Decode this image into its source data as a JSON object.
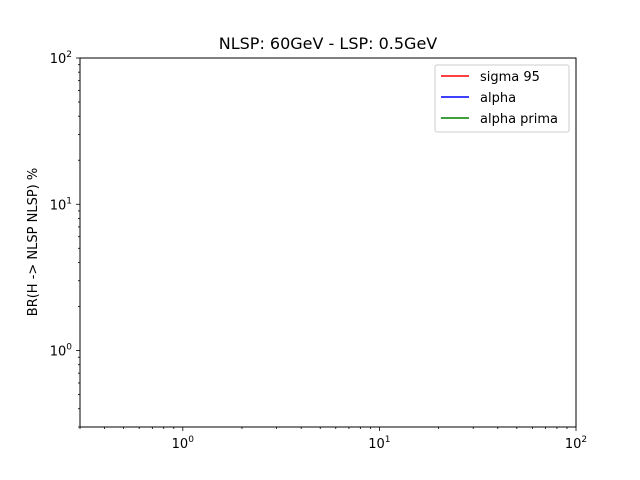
{
  "chart_data": {
    "type": "line",
    "title": "NLSP: 60GeV - LSP: 0.5GeV",
    "xlabel": "",
    "ylabel": "BR(H -> NLSP NLSP) %",
    "xscale": "log",
    "yscale": "log",
    "xlim": [
      0.3,
      100
    ],
    "ylim": [
      0.3,
      100
    ],
    "x_ticks": [
      {
        "value": 1,
        "base": "10",
        "exp": "0"
      },
      {
        "value": 10,
        "base": "10",
        "exp": "1"
      },
      {
        "value": 100,
        "base": "10",
        "exp": "2"
      }
    ],
    "y_ticks": [
      {
        "value": 1,
        "base": "10",
        "exp": "0"
      },
      {
        "value": 10,
        "base": "10",
        "exp": "1"
      },
      {
        "value": 100,
        "base": "10",
        "exp": "2"
      }
    ],
    "grid": false,
    "legend_position": "upper-right",
    "series": [
      {
        "name": "sigma 95",
        "color": "#ff0000",
        "x": [],
        "y": []
      },
      {
        "name": "alpha",
        "color": "#0000ff",
        "x": [],
        "y": []
      },
      {
        "name": "alpha prima",
        "color": "#008000",
        "x": [],
        "y": []
      }
    ]
  }
}
